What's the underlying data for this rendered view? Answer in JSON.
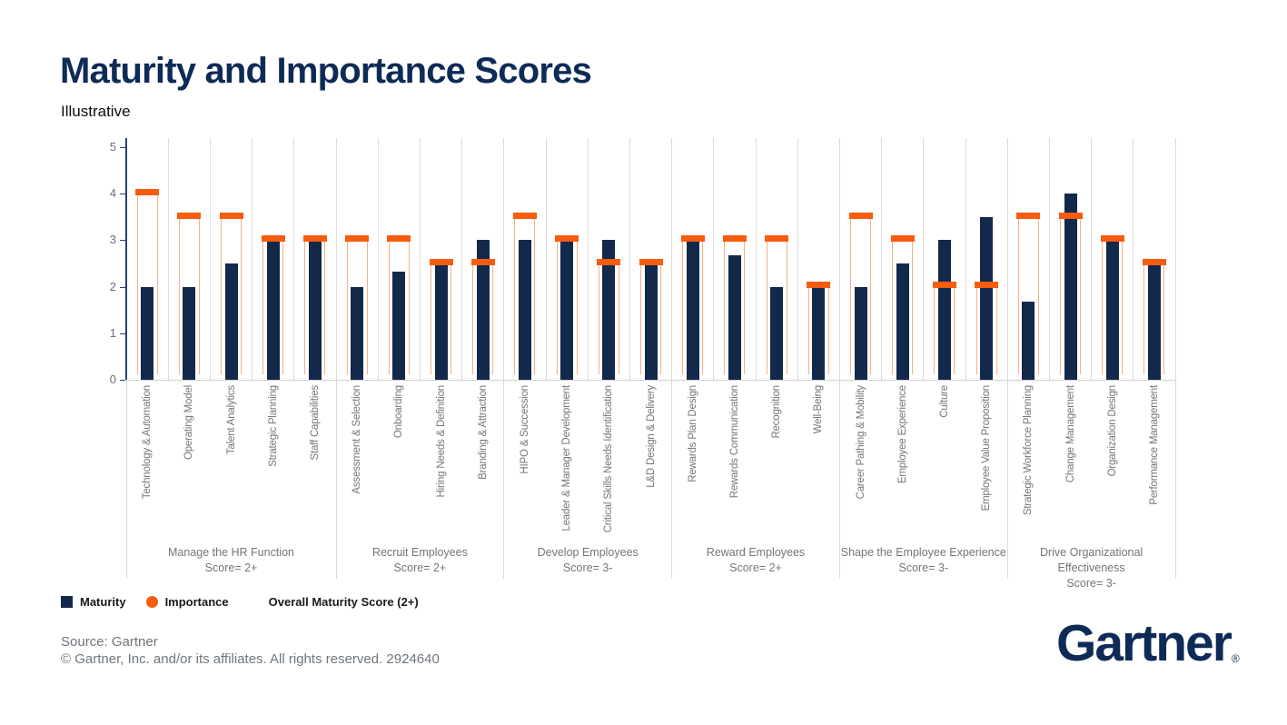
{
  "page": {
    "title": "Maturity and Importance Scores",
    "subtitle": "Illustrative"
  },
  "legend": {
    "maturity_label": "Maturity",
    "importance_label": "Importance",
    "overall_label": "Overall Maturity Score (2+)"
  },
  "footer": {
    "source": "Source: Gartner",
    "copyright": "© Gartner, Inc. and/or its affiliates. All rights reserved. 2924640",
    "logo": "Gartner",
    "logo_reg": "®"
  },
  "colors": {
    "navy_bar": "#12294B",
    "orange": "#F85C0F",
    "title_navy": "#0E2B57",
    "grid": "#DCDCDC",
    "axis": "#27426C",
    "axis_text": "#6F6F6F",
    "label_text": "#757575",
    "footer_text": "#6F767C"
  },
  "chart_data": {
    "type": "bar",
    "title": "Maturity and Importance Scores",
    "subtitle": "Illustrative",
    "ylabel": "",
    "xlabel": "",
    "ylim": [
      0,
      5
    ],
    "yticks": [
      0,
      1,
      2,
      3,
      4,
      5
    ],
    "grid": "vertical category gridlines only, no horizontal gridlines",
    "legend_position": "bottom-left",
    "series": [
      {
        "name": "Maturity",
        "style": "solid navy bar"
      },
      {
        "name": "Importance",
        "style": "orange cap marker atop thin orange outlined range"
      }
    ],
    "groups": [
      {
        "label": "Manage the HR Function",
        "score": "Score= 2+",
        "items": [
          {
            "category": "Technology & Automation",
            "maturity": 2.0,
            "importance": 4.1
          },
          {
            "category": "Operating Model",
            "maturity": 2.0,
            "importance": 3.6
          },
          {
            "category": "Talent Analytics",
            "maturity": 2.5,
            "importance": 3.6
          },
          {
            "category": "Strategic Planning",
            "maturity": 3.0,
            "importance": 3.1
          },
          {
            "category": "Staff Capabilities",
            "maturity": 3.0,
            "importance": 3.1
          }
        ]
      },
      {
        "label": "Recruit Employees",
        "score": "Score= 2+",
        "items": [
          {
            "category": "Assessment & Selection",
            "maturity": 2.0,
            "importance": 3.1
          },
          {
            "category": "Onboarding",
            "maturity": 2.33,
            "importance": 3.1
          },
          {
            "category": "Hiring Needs & Definition",
            "maturity": 2.5,
            "importance": 2.6
          },
          {
            "category": "Branding & Attraction",
            "maturity": 3.0,
            "importance": 2.6
          }
        ]
      },
      {
        "label": "Develop Employees",
        "score": "Score= 3-",
        "items": [
          {
            "category": "HIPO & Succession",
            "maturity": 3.0,
            "importance": 3.6
          },
          {
            "category": "Leader & Manager Development",
            "maturity": 3.0,
            "importance": 3.1
          },
          {
            "category": "Critical Skills Needs Identification",
            "maturity": 3.0,
            "importance": 2.6
          },
          {
            "category": "L&D Design & Delivery",
            "maturity": 2.5,
            "importance": 2.6
          }
        ]
      },
      {
        "label": "Reward Employees",
        "score": "Score= 2+",
        "items": [
          {
            "category": "Rewards Plan Design",
            "maturity": 3.0,
            "importance": 3.1
          },
          {
            "category": "Rewards Communication",
            "maturity": 2.67,
            "importance": 3.1
          },
          {
            "category": "Recognition",
            "maturity": 2.0,
            "importance": 3.1
          },
          {
            "category": "Well-Being",
            "maturity": 2.0,
            "importance": 2.1
          }
        ]
      },
      {
        "label": "Shape the Employee Experience",
        "score": "Score= 3-",
        "items": [
          {
            "category": "Career Pathing & Mobility",
            "maturity": 2.0,
            "importance": 3.6
          },
          {
            "category": "Employee Experience",
            "maturity": 2.5,
            "importance": 3.1
          },
          {
            "category": "Culture",
            "maturity": 3.0,
            "importance": 2.1
          },
          {
            "category": "Employee Value Proposition",
            "maturity": 3.5,
            "importance": 2.1
          }
        ]
      },
      {
        "label": "Drive Organizational Effectiveness",
        "score": "Score= 3-",
        "items": [
          {
            "category": "Strategic Workforce Planning",
            "maturity": 1.67,
            "importance": 3.6
          },
          {
            "category": "Change Management",
            "maturity": 4.0,
            "importance": 3.6
          },
          {
            "category": "Organization Design",
            "maturity": 3.0,
            "importance": 3.1
          },
          {
            "category": "Performance Management",
            "maturity": 2.5,
            "importance": 2.6
          }
        ]
      }
    ]
  }
}
